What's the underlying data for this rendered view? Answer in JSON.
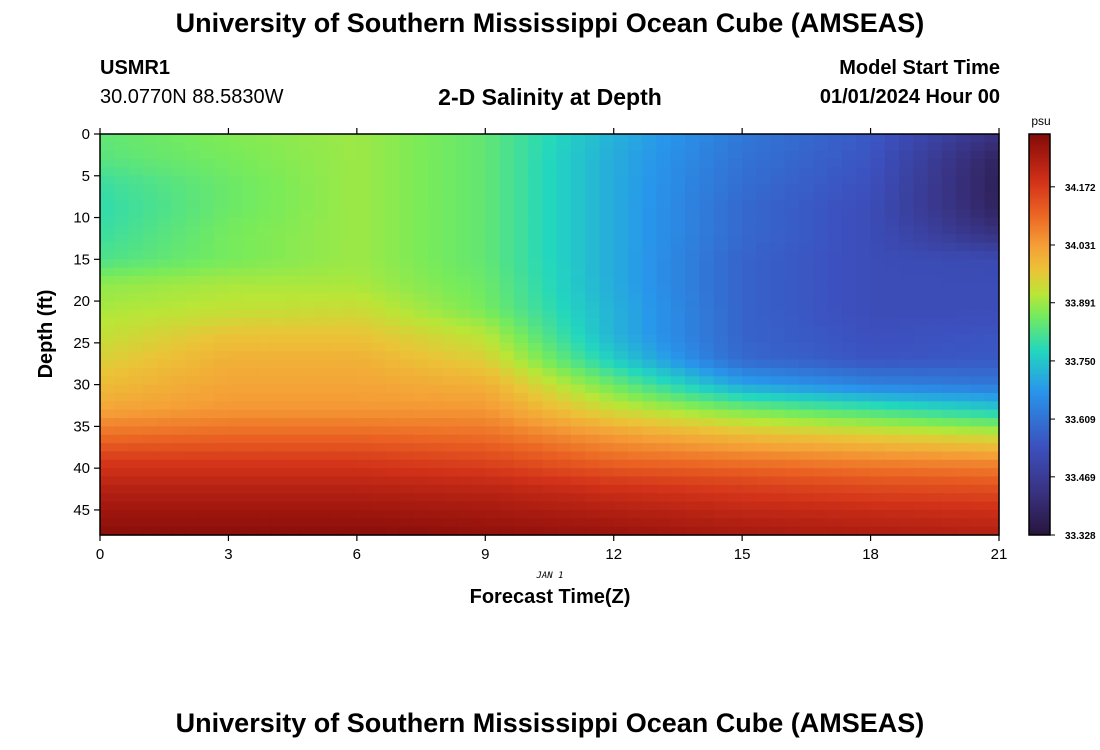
{
  "header": {
    "title": "University of Southern Mississippi Ocean Cube (AMSEAS)",
    "station": "USMR1",
    "coordinates": "30.0770N  88.5830W",
    "subtitle": "2-D Salinity at Depth",
    "model_start_label": "Model Start Time",
    "model_start_value": "01/01/2024 Hour 00"
  },
  "footer": {
    "title": "University of Southern Mississippi Ocean Cube (AMSEAS)"
  },
  "chart_data": {
    "type": "heatmap",
    "title": "2-D Salinity at Depth",
    "xlabel": "Forecast Time(Z)",
    "x_sublabel": "JAN 1",
    "ylabel": "Depth (ft)",
    "xlim": [
      0,
      21
    ],
    "ylim": [
      48,
      0
    ],
    "x_ticks": [
      0,
      3,
      6,
      9,
      12,
      15,
      18,
      21
    ],
    "y_ticks": [
      0,
      5,
      10,
      15,
      20,
      25,
      30,
      35,
      40,
      45
    ],
    "colorbar": {
      "unit": "psu",
      "range": [
        33.328,
        34.3
      ],
      "ticks": [
        33.328,
        33.469,
        33.609,
        33.75,
        33.891,
        34.031,
        34.172
      ]
    },
    "depth_levels_ft": [
      0,
      3,
      6,
      9,
      12,
      15,
      18,
      21,
      24,
      27,
      30,
      33,
      36,
      39,
      42,
      45,
      48
    ],
    "time_levels_hr": [
      0,
      3,
      6,
      9,
      12,
      15,
      18,
      21
    ],
    "salinity_psu": [
      [
        33.84,
        33.87,
        33.89,
        33.84,
        33.72,
        33.62,
        33.56,
        33.43
      ],
      [
        33.83,
        33.86,
        33.89,
        33.84,
        33.71,
        33.61,
        33.55,
        33.38
      ],
      [
        33.8,
        33.85,
        33.89,
        33.84,
        33.71,
        33.6,
        33.54,
        33.37
      ],
      [
        33.79,
        33.85,
        33.89,
        33.84,
        33.71,
        33.59,
        33.53,
        33.38
      ],
      [
        33.8,
        33.86,
        33.89,
        33.84,
        33.71,
        33.59,
        33.53,
        33.43
      ],
      [
        33.82,
        33.86,
        33.89,
        33.84,
        33.71,
        33.58,
        33.53,
        33.52
      ],
      [
        33.88,
        33.9,
        33.9,
        33.85,
        33.71,
        33.58,
        33.53,
        33.53
      ],
      [
        33.9,
        33.92,
        33.93,
        33.86,
        33.72,
        33.58,
        33.53,
        33.53
      ],
      [
        33.92,
        33.97,
        33.97,
        33.91,
        33.72,
        33.58,
        33.54,
        33.55
      ],
      [
        33.95,
        34.0,
        34.0,
        33.95,
        33.76,
        33.59,
        33.55,
        33.56
      ],
      [
        33.98,
        34.02,
        34.02,
        34.0,
        33.85,
        33.7,
        33.64,
        33.62
      ],
      [
        34.02,
        34.04,
        34.04,
        34.04,
        33.93,
        33.86,
        33.81,
        33.76
      ],
      [
        34.09,
        34.1,
        34.1,
        34.09,
        34.03,
        33.98,
        33.95,
        33.92
      ],
      [
        34.17,
        34.17,
        34.17,
        34.15,
        34.1,
        34.08,
        34.06,
        34.05
      ],
      [
        34.22,
        34.22,
        34.22,
        34.21,
        34.18,
        34.16,
        34.14,
        34.13
      ],
      [
        34.26,
        34.26,
        34.26,
        34.25,
        34.23,
        34.21,
        34.2,
        34.19
      ],
      [
        34.29,
        34.29,
        34.29,
        34.28,
        34.27,
        34.25,
        34.24,
        34.23
      ]
    ]
  }
}
